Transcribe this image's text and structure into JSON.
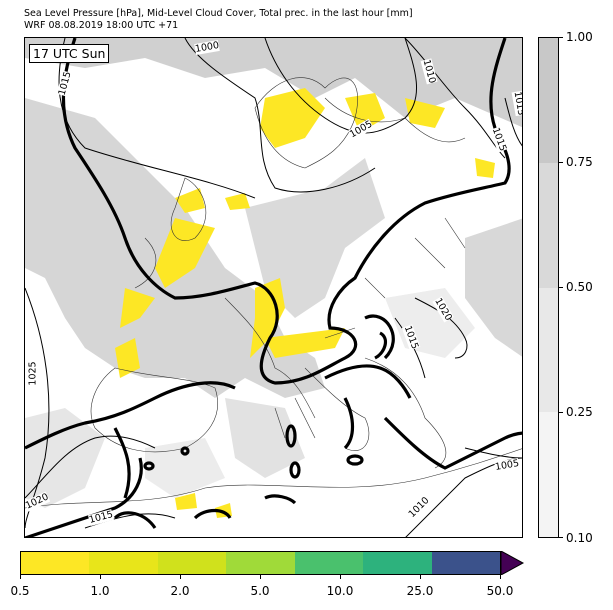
{
  "title_line1": "Sea Level Pressure [hPa], Mid-Level Cloud Cover, Total prec. in the last hour [mm]",
  "title_line2": "WRF 08.08.2019 18:00 UTC +71",
  "time_label": "17 UTC Sun",
  "isobar_labels": [
    "1000",
    "1015",
    "1010",
    "1005",
    "1015",
    "1025",
    "1020",
    "1015",
    "1020",
    "1015",
    "1010",
    "1005",
    "1015"
  ],
  "cloud_colorbar": {
    "labels": [
      "1.00",
      "0.75",
      "0.50",
      "0.25",
      "0.10"
    ],
    "colors": [
      "#c8c8c8",
      "#d9d9d9",
      "#e8e8e8",
      "#f4f4f4"
    ]
  },
  "precip_colorbar": {
    "labels": [
      "0.5",
      "1.0",
      "2.0",
      "5.0",
      "10.0",
      "25.0",
      "50.0"
    ],
    "colors": [
      "#fde725",
      "#e8e51a",
      "#d0e11c",
      "#a0da39",
      "#4ac16d",
      "#2db27d",
      "#3b528b"
    ],
    "extend_color": "#440154"
  }
}
